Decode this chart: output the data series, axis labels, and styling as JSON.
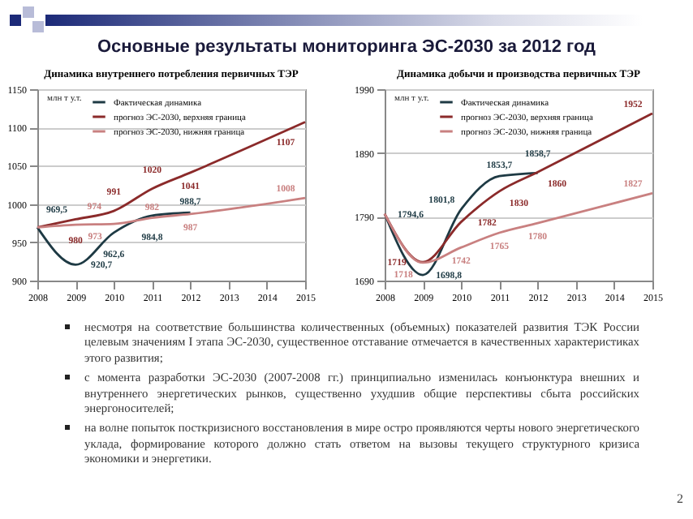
{
  "chart_data": [
    {
      "type": "other",
      "title": "Основные результаты мониторинга ЭС-2030 за 2012 год"
    },
    {
      "type": "line",
      "title": "Динамика внутреннего потребления первичных ТЭР",
      "annotations": [
        "млн т у.т."
      ],
      "xlim": [
        2008,
        2015
      ],
      "xticks": [
        2008,
        2009,
        2010,
        2011,
        2012,
        2013,
        2014,
        2015
      ],
      "ylim": [
        900,
        1150
      ],
      "yticks": [
        900,
        950,
        1000,
        1050,
        1100,
        1150
      ],
      "grid": "y",
      "legend": "top",
      "marker": "none",
      "line_style": "solid",
      "series": [
        {
          "name": "Фактическая динамика",
          "color": "#1e3a44",
          "x": [
            2008,
            2009,
            2010,
            2011,
            2012
          ],
          "values": [
            969.5,
            920.7,
            962.6,
            984.8,
            988.7
          ],
          "value_labels": [
            "969,5",
            "920,7",
            "962,6",
            "984,8",
            "988,7"
          ]
        },
        {
          "name": "прогноз ЭС-2030, верхняя граница",
          "color": "#8b2a2a",
          "x": [
            2008,
            2009,
            2010,
            2011,
            2012,
            2015
          ],
          "values": [
            969.5,
            980,
            991,
            1020,
            1041,
            1107
          ],
          "value_labels": [
            null,
            "980",
            "991",
            "1020",
            "1041",
            "1107"
          ]
        },
        {
          "name": "прогноз ЭС-2030, нижняя граница",
          "color": "#c98080",
          "x": [
            2008,
            2009,
            2010,
            2011,
            2012,
            2015
          ],
          "values": [
            969.5,
            973,
            974,
            982,
            987,
            1008
          ],
          "value_labels": [
            null,
            "973",
            "974",
            "982",
            "987",
            "1008"
          ]
        }
      ]
    },
    {
      "type": "line",
      "title": "Динамика добычи и производства первичных ТЭР",
      "annotations": [
        "млн т у.т."
      ],
      "xlim": [
        2008,
        2015
      ],
      "xticks": [
        2008,
        2009,
        2010,
        2011,
        2012,
        2013,
        2014,
        2015
      ],
      "ylim": [
        1690,
        1990
      ],
      "yticks": [
        1690,
        1790,
        1890,
        1990
      ],
      "grid": "y",
      "legend": "top",
      "marker": "none",
      "line_style": "solid",
      "series": [
        {
          "name": "Фактическая динамика",
          "color": "#1e3a44",
          "x": [
            2008,
            2009,
            2010,
            2011,
            2012
          ],
          "values": [
            1794.6,
            1698.8,
            1801.8,
            1853.7,
            1858.7
          ],
          "value_labels": [
            "1794,6",
            "1698,8",
            "1801,8",
            "1853,7",
            "1858,7"
          ]
        },
        {
          "name": "прогноз ЭС-2030, верхняя граница",
          "color": "#8b2a2a",
          "x": [
            2008,
            2009,
            2010,
            2011,
            2012,
            2015
          ],
          "values": [
            1794.6,
            1719,
            1782,
            1830,
            1860,
            1952
          ],
          "value_labels": [
            null,
            "1719",
            "1782",
            "1830",
            "1860",
            "1952"
          ]
        },
        {
          "name": "прогноз ЭС-2030, нижняя граница",
          "color": "#c98080",
          "x": [
            2008,
            2009,
            2010,
            2011,
            2012,
            2015
          ],
          "values": [
            1794.6,
            1718,
            1742,
            1765,
            1780,
            1827
          ],
          "value_labels": [
            null,
            "1718",
            "1742",
            "1765",
            "1780",
            "1827"
          ]
        }
      ]
    },
    {
      "type": "other",
      "annotations": [
        "несмотря на соответствие большинства количественных (объемных) показателей развития ТЭК России целевым значениям I этапа ЭС-2030, существенное отставание отмечается в качественных характеристиках этого развития;",
        "с момента разработки ЭС-2030 (2007-2008 гг.) принципиально изменилась конъюнктура внешних и внутреннего энергетических рынков, существенно ухудшив общие перспективы сбыта российских энергоносителей;",
        "на волне попыток посткризисного восстановления в мире остро проявляются черты нового энергетического уклада, формирование которого должно стать ответом на вызовы текущего структурного кризиса экономики и энергетики.",
        "2"
      ]
    }
  ]
}
